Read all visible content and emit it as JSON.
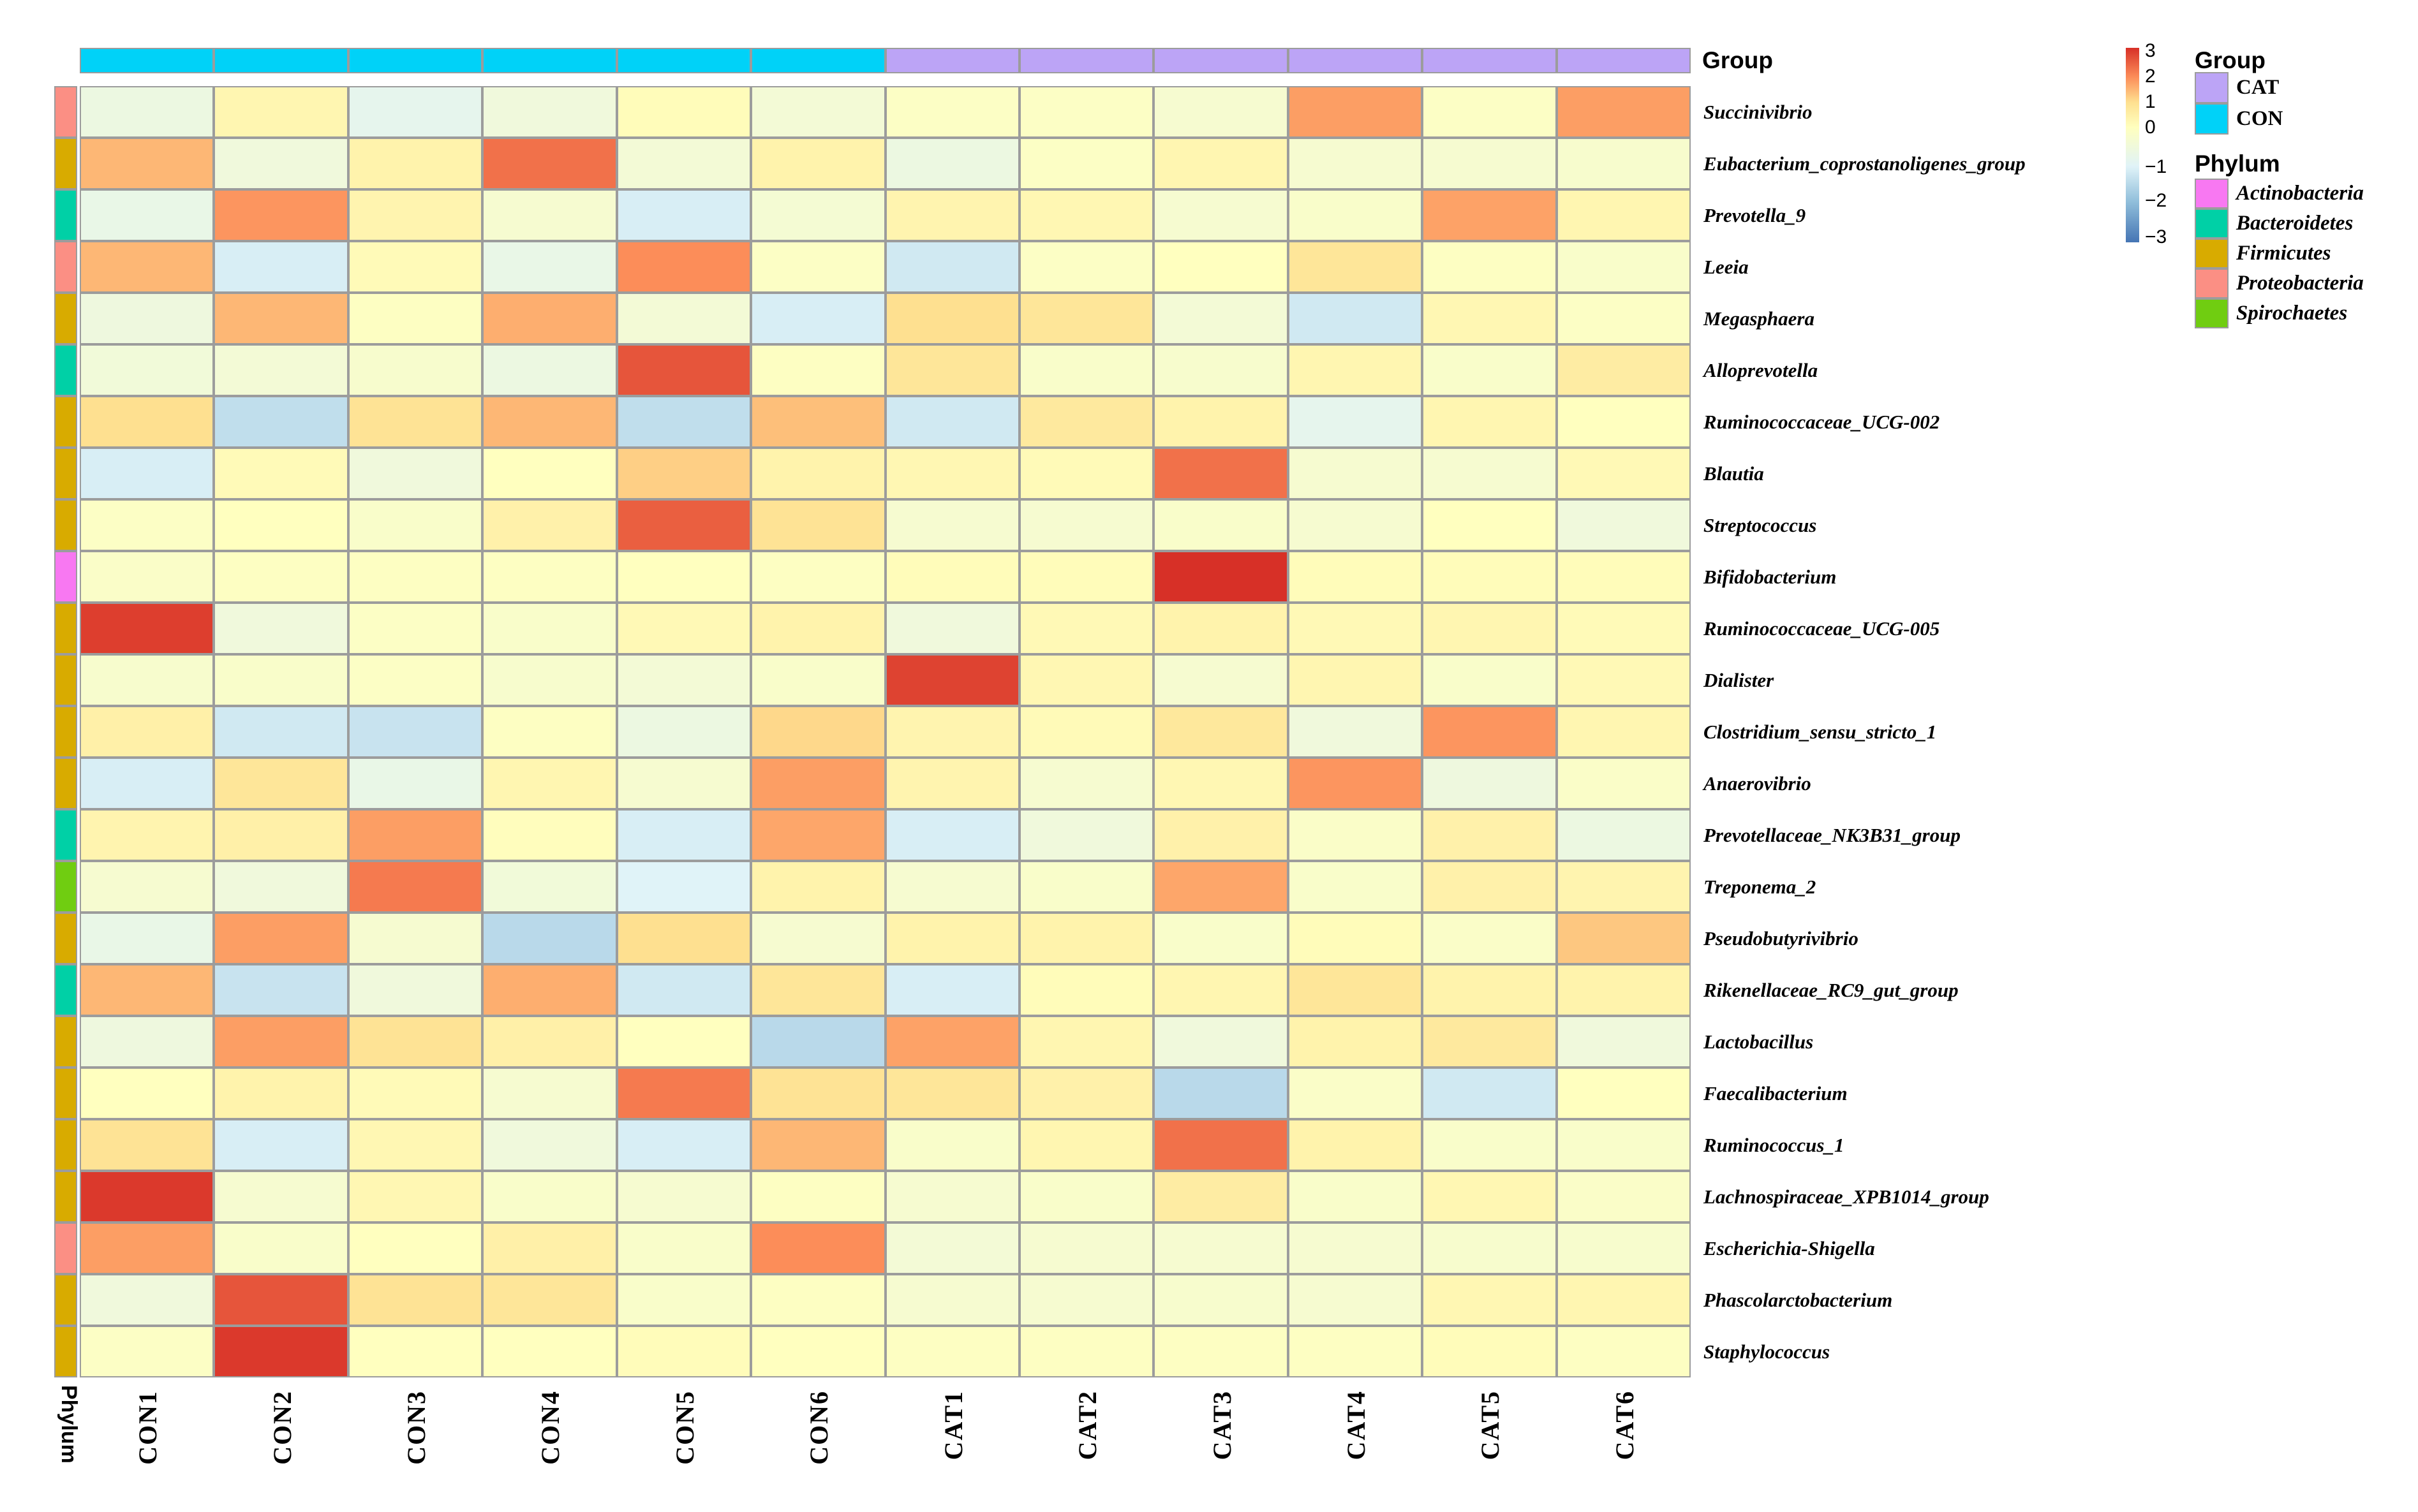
{
  "labels": {
    "phylum_axis": "Phylum",
    "group_bar": "Group"
  },
  "annotations": {
    "group": {
      "title": "Group",
      "items": [
        {
          "label": "CAT",
          "color": "#bca4f6"
        },
        {
          "label": "CON",
          "color": "#00d2f8"
        }
      ]
    },
    "phylum": {
      "title": "Phylum",
      "items": [
        {
          "label": "Actinobacteria",
          "color": "#f878f2"
        },
        {
          "label": "Bacteroidetes",
          "color": "#00d0a6"
        },
        {
          "label": "Firmicutes",
          "color": "#d8ab00"
        },
        {
          "label": "Proteobacteria",
          "color": "#fb8f84"
        },
        {
          "label": "Spirochaetes",
          "color": "#70cd11"
        }
      ]
    }
  },
  "chart_data": {
    "type": "heatmap",
    "grid": true,
    "legend_position": "right",
    "columns": [
      "CON1",
      "CON2",
      "CON3",
      "CON4",
      "CON5",
      "CON6",
      "CAT1",
      "CAT2",
      "CAT3",
      "CAT4",
      "CAT5",
      "CAT6"
    ],
    "column_groups": [
      "CON",
      "CON",
      "CON",
      "CON",
      "CON",
      "CON",
      "CAT",
      "CAT",
      "CAT",
      "CAT",
      "CAT",
      "CAT"
    ],
    "rows": [
      {
        "name": "Succinivibrio",
        "phylum": "Proteobacteria"
      },
      {
        "name": "Eubacterium_coprostanoligenes_group",
        "phylum": "Firmicutes"
      },
      {
        "name": "Prevotella_9",
        "phylum": "Bacteroidetes"
      },
      {
        "name": "Leeia",
        "phylum": "Proteobacteria"
      },
      {
        "name": "Megasphaera",
        "phylum": "Firmicutes"
      },
      {
        "name": "Alloprevotella",
        "phylum": "Bacteroidetes"
      },
      {
        "name": "Ruminococcaceae_UCG-002",
        "phylum": "Firmicutes"
      },
      {
        "name": "Blautia",
        "phylum": "Firmicutes"
      },
      {
        "name": "Streptococcus",
        "phylum": "Firmicutes"
      },
      {
        "name": "Bifidobacterium",
        "phylum": "Actinobacteria"
      },
      {
        "name": "Ruminococcaceae_UCG-005",
        "phylum": "Firmicutes"
      },
      {
        "name": "Dialister",
        "phylum": "Firmicutes"
      },
      {
        "name": "Clostridium_sensu_stricto_1",
        "phylum": "Firmicutes"
      },
      {
        "name": "Anaerovibrio",
        "phylum": "Firmicutes"
      },
      {
        "name": "Prevotellaceae_NK3B31_group",
        "phylum": "Bacteroidetes"
      },
      {
        "name": "Treponema_2",
        "phylum": "Spirochaetes"
      },
      {
        "name": "Pseudobutyrivibrio",
        "phylum": "Firmicutes"
      },
      {
        "name": "Rikenellaceae_RC9_gut_group",
        "phylum": "Bacteroidetes"
      },
      {
        "name": "Lactobacillus",
        "phylum": "Firmicutes"
      },
      {
        "name": "Faecalibacterium",
        "phylum": "Firmicutes"
      },
      {
        "name": "Ruminococcus_1",
        "phylum": "Firmicutes"
      },
      {
        "name": "Lachnospiraceae_XPB1014_group",
        "phylum": "Firmicutes"
      },
      {
        "name": "Escherichia-Shigella",
        "phylum": "Proteobacteria"
      },
      {
        "name": "Phascolarctobacterium",
        "phylum": "Firmicutes"
      },
      {
        "name": "Staphylococcus",
        "phylum": "Firmicutes"
      }
    ],
    "values": [
      [
        -0.6,
        0.3,
        -0.8,
        -0.5,
        0.1,
        -0.4,
        -0.1,
        -0.1,
        -0.3,
        1.8,
        -0.1,
        1.8
      ],
      [
        1.5,
        -0.5,
        0.4,
        2.3,
        -0.4,
        0.4,
        -0.6,
        -0.1,
        0.3,
        -0.3,
        -0.3,
        -0.25
      ],
      [
        -0.7,
        1.9,
        0.35,
        -0.3,
        -1.1,
        -0.35,
        0.35,
        0.25,
        -0.3,
        -0.2,
        1.75,
        0.3
      ],
      [
        1.5,
        -1.1,
        0.15,
        -0.7,
        2.0,
        -0.1,
        -1.2,
        -0.1,
        0.0,
        0.8,
        -0.05,
        -0.2
      ],
      [
        -0.55,
        1.5,
        -0.05,
        1.6,
        -0.4,
        -1.1,
        1.0,
        0.8,
        -0.4,
        -1.2,
        0.25,
        -0.1
      ],
      [
        -0.45,
        -0.4,
        -0.25,
        -0.6,
        2.6,
        -0.05,
        0.8,
        -0.2,
        -0.25,
        0.3,
        -0.2,
        0.6
      ],
      [
        1.0,
        -1.4,
        0.9,
        1.5,
        -1.4,
        1.4,
        -1.2,
        0.7,
        0.4,
        -0.8,
        0.3,
        0.0
      ],
      [
        -1.1,
        0.15,
        -0.5,
        0.0,
        1.2,
        0.4,
        0.25,
        0.15,
        2.3,
        -0.3,
        -0.3,
        0.2
      ],
      [
        -0.1,
        0.0,
        -0.2,
        0.45,
        2.5,
        0.9,
        -0.3,
        -0.3,
        -0.2,
        -0.3,
        0.0,
        -0.5
      ],
      [
        -0.15,
        -0.05,
        -0.05,
        -0.05,
        0.0,
        -0.05,
        0.1,
        0.1,
        3.0,
        0.1,
        0.1,
        0.1
      ],
      [
        2.85,
        -0.5,
        -0.1,
        -0.2,
        0.2,
        0.4,
        -0.5,
        0.2,
        0.4,
        0.2,
        0.3,
        0.15
      ],
      [
        -0.25,
        -0.2,
        -0.1,
        -0.25,
        -0.4,
        -0.2,
        2.8,
        0.25,
        -0.3,
        0.3,
        -0.2,
        0.2
      ],
      [
        0.5,
        -1.2,
        -1.3,
        -0.05,
        -0.6,
        1.1,
        0.35,
        0.15,
        0.75,
        -0.5,
        1.9,
        0.3
      ],
      [
        -1.1,
        0.8,
        -0.7,
        0.3,
        -0.3,
        1.8,
        0.35,
        -0.3,
        0.25,
        1.9,
        -0.55,
        -0.15
      ],
      [
        0.35,
        0.5,
        1.8,
        0.05,
        -1.1,
        1.7,
        -1.1,
        -0.5,
        0.45,
        -0.15,
        0.45,
        -0.6
      ],
      [
        -0.3,
        -0.5,
        2.2,
        -0.45,
        -1.0,
        0.4,
        -0.3,
        -0.2,
        1.7,
        -0.2,
        0.45,
        0.35
      ],
      [
        -0.7,
        1.8,
        -0.3,
        -1.5,
        1.0,
        -0.3,
        0.4,
        0.4,
        -0.2,
        0.1,
        -0.15,
        1.3
      ],
      [
        1.5,
        -1.3,
        -0.5,
        1.6,
        -1.2,
        0.8,
        -1.1,
        0.1,
        0.3,
        0.8,
        0.4,
        0.4
      ],
      [
        -0.55,
        1.8,
        0.9,
        0.5,
        0.0,
        -1.5,
        1.75,
        0.3,
        -0.5,
        0.4,
        0.7,
        -0.5
      ],
      [
        0.0,
        0.4,
        0.15,
        -0.3,
        2.2,
        0.9,
        0.8,
        0.45,
        -1.5,
        -0.15,
        -1.2,
        0.0
      ],
      [
        0.9,
        -1.1,
        0.25,
        -0.5,
        -1.1,
        1.5,
        -0.2,
        0.3,
        2.3,
        0.4,
        -0.2,
        -0.2
      ],
      [
        2.9,
        -0.3,
        0.25,
        -0.2,
        -0.3,
        -0.05,
        -0.3,
        -0.2,
        0.6,
        -0.2,
        0.25,
        -0.15
      ],
      [
        1.8,
        -0.2,
        0.0,
        0.5,
        -0.2,
        2.0,
        -0.4,
        -0.3,
        -0.3,
        -0.3,
        -0.25,
        -0.25
      ],
      [
        -0.5,
        2.6,
        0.9,
        0.8,
        -0.2,
        -0.05,
        -0.3,
        -0.3,
        -0.25,
        -0.3,
        0.25,
        0.3
      ],
      [
        -0.1,
        2.9,
        0.0,
        0.0,
        0.1,
        0.0,
        -0.05,
        -0.05,
        -0.05,
        -0.05,
        0.1,
        -0.05
      ]
    ],
    "scale": {
      "min": -3,
      "max": 3,
      "tick_labels": [
        "3",
        "2",
        "1",
        "0",
        "−1",
        "−2",
        "−3"
      ],
      "colormap_stops": {
        "-3": "#4575b4",
        "-2": "#91bfdb",
        "-1": "#e0f3f8",
        "0": "#ffffbf",
        "1": "#fee090",
        "2": "#fc8d59",
        "3": "#d73027"
      }
    },
    "border_color": "#9c9c9c"
  }
}
